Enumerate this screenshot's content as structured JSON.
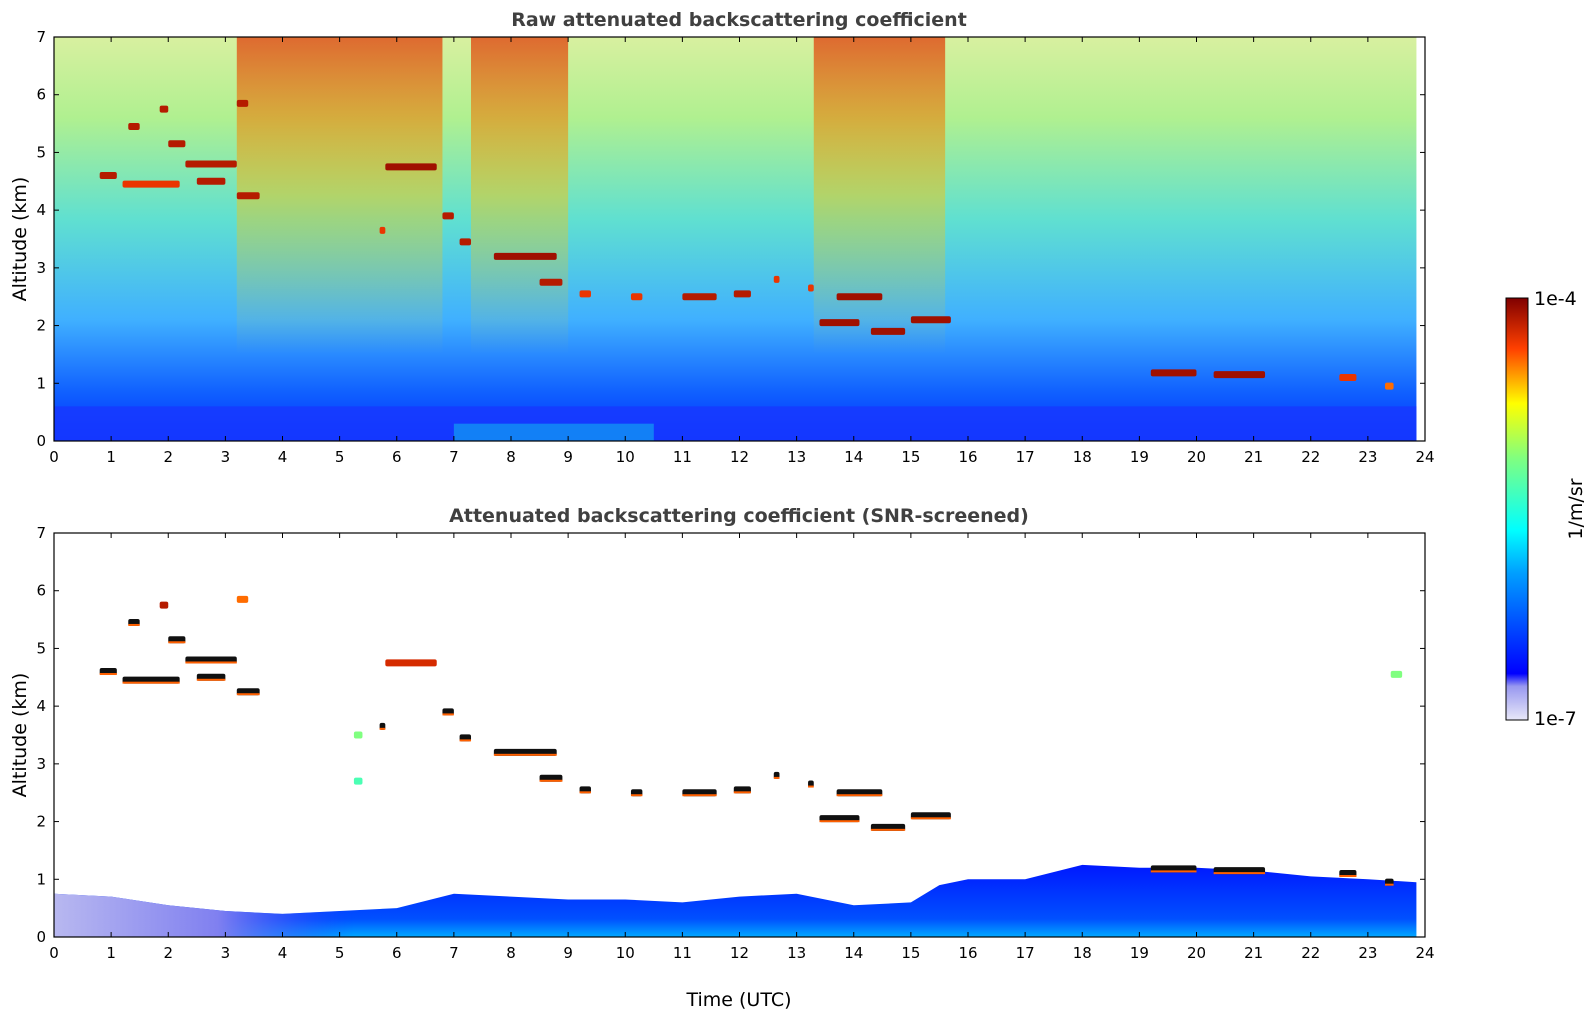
{
  "chart_data": [
    {
      "type": "heatmap",
      "title": "Raw attenuated backscattering coefficient",
      "xlabel": "",
      "ylabel": "Altitude (km)",
      "xlim": [
        0,
        24
      ],
      "ylim": [
        0,
        7
      ],
      "x_ticks": [
        "0",
        "1",
        "2",
        "3",
        "4",
        "5",
        "6",
        "7",
        "8",
        "9",
        "10",
        "11",
        "12",
        "13",
        "14",
        "15",
        "16",
        "17",
        "18",
        "19",
        "20",
        "21",
        "22",
        "23",
        "24"
      ],
      "y_ticks": [
        "0",
        "1",
        "2",
        "3",
        "4",
        "5",
        "6",
        "7"
      ],
      "color_scale": {
        "min_label": "1e-7",
        "max_label": "1e-4",
        "unit": "1/m/sr",
        "colormap": "jet"
      },
      "features": [
        {
          "t0": 0.8,
          "t1": 1.1,
          "alt": 4.6,
          "level": 0.95
        },
        {
          "t0": 1.3,
          "t1": 1.5,
          "alt": 5.45,
          "level": 0.95
        },
        {
          "t0": 1.85,
          "t1": 2.0,
          "alt": 5.75,
          "level": 0.95
        },
        {
          "t0": 2.0,
          "t1": 2.3,
          "alt": 5.15,
          "level": 0.95
        },
        {
          "t0": 2.3,
          "t1": 3.2,
          "alt": 4.8,
          "level": 0.95
        },
        {
          "t0": 1.2,
          "t1": 2.2,
          "alt": 4.45,
          "level": 0.9
        },
        {
          "t0": 2.5,
          "t1": 3.0,
          "alt": 4.5,
          "level": 0.95
        },
        {
          "t0": 3.2,
          "t1": 3.6,
          "alt": 4.25,
          "level": 0.95
        },
        {
          "t0": 3.2,
          "t1": 3.4,
          "alt": 5.85,
          "level": 0.95
        },
        {
          "t0": 5.8,
          "t1": 6.7,
          "alt": 4.75,
          "level": 0.97
        },
        {
          "t0": 5.7,
          "t1": 5.8,
          "alt": 3.65,
          "level": 0.9
        },
        {
          "t0": 6.8,
          "t1": 7.0,
          "alt": 3.9,
          "level": 0.95
        },
        {
          "t0": 7.1,
          "t1": 7.3,
          "alt": 3.45,
          "level": 0.95
        },
        {
          "t0": 7.7,
          "t1": 8.8,
          "alt": 3.2,
          "level": 0.97
        },
        {
          "t0": 8.5,
          "t1": 8.9,
          "alt": 2.75,
          "level": 0.95
        },
        {
          "t0": 9.2,
          "t1": 9.4,
          "alt": 2.55,
          "level": 0.9
        },
        {
          "t0": 10.1,
          "t1": 10.3,
          "alt": 2.5,
          "level": 0.9
        },
        {
          "t0": 11.0,
          "t1": 11.6,
          "alt": 2.5,
          "level": 0.95
        },
        {
          "t0": 11.9,
          "t1": 12.2,
          "alt": 2.55,
          "level": 0.95
        },
        {
          "t0": 12.6,
          "t1": 12.7,
          "alt": 2.8,
          "level": 0.9
        },
        {
          "t0": 13.2,
          "t1": 13.3,
          "alt": 2.65,
          "level": 0.9
        },
        {
          "t0": 13.4,
          "t1": 14.1,
          "alt": 2.05,
          "level": 0.97
        },
        {
          "t0": 13.7,
          "t1": 14.5,
          "alt": 2.5,
          "level": 0.97
        },
        {
          "t0": 14.3,
          "t1": 14.9,
          "alt": 1.9,
          "level": 0.97
        },
        {
          "t0": 15.0,
          "t1": 15.7,
          "alt": 2.1,
          "level": 0.97
        },
        {
          "t0": 19.2,
          "t1": 20.0,
          "alt": 1.18,
          "level": 0.97
        },
        {
          "t0": 20.3,
          "t1": 21.2,
          "alt": 1.15,
          "level": 0.97
        },
        {
          "t0": 22.5,
          "t1": 22.8,
          "alt": 1.1,
          "level": 0.9
        },
        {
          "t0": 23.3,
          "t1": 23.45,
          "alt": 0.95,
          "level": 0.85
        }
      ]
    },
    {
      "type": "heatmap",
      "title": "Attenuated backscattering coefficient (SNR-screened)",
      "xlabel": "Time (UTC)",
      "ylabel": "Altitude (km)",
      "xlim": [
        0,
        24
      ],
      "ylim": [
        0,
        7
      ],
      "x_ticks": [
        "0",
        "1",
        "2",
        "3",
        "4",
        "5",
        "6",
        "7",
        "8",
        "9",
        "10",
        "11",
        "12",
        "13",
        "14",
        "15",
        "16",
        "17",
        "18",
        "19",
        "20",
        "21",
        "22",
        "23",
        "24"
      ],
      "y_ticks": [
        "0",
        "1",
        "2",
        "3",
        "4",
        "5",
        "6",
        "7"
      ],
      "color_scale": {
        "min_label": "1e-7",
        "max_label": "1e-4",
        "unit": "1/m/sr",
        "colormap": "jet"
      },
      "boundary_layer_top_km": [
        [
          0,
          0.75
        ],
        [
          1,
          0.7
        ],
        [
          2,
          0.55
        ],
        [
          3,
          0.45
        ],
        [
          4,
          0.4
        ],
        [
          5,
          0.45
        ],
        [
          6,
          0.5
        ],
        [
          7,
          0.75
        ],
        [
          8,
          0.7
        ],
        [
          9,
          0.65
        ],
        [
          10,
          0.65
        ],
        [
          11,
          0.6
        ],
        [
          12,
          0.7
        ],
        [
          13,
          0.75
        ],
        [
          14,
          0.55
        ],
        [
          15,
          0.6
        ],
        [
          15.5,
          0.9
        ],
        [
          16,
          1.0
        ],
        [
          17,
          1.0
        ],
        [
          18,
          1.25
        ],
        [
          19,
          1.2
        ],
        [
          20,
          1.2
        ],
        [
          21,
          1.15
        ],
        [
          22,
          1.05
        ],
        [
          23,
          1.0
        ],
        [
          23.85,
          0.95
        ]
      ],
      "features": [
        {
          "t0": 0.8,
          "t1": 1.1,
          "alt": 4.6,
          "level": 1.0
        },
        {
          "t0": 1.3,
          "t1": 1.5,
          "alt": 5.45,
          "level": 1.0
        },
        {
          "t0": 1.85,
          "t1": 2.0,
          "alt": 5.75,
          "level": 0.95
        },
        {
          "t0": 2.0,
          "t1": 2.3,
          "alt": 5.15,
          "level": 1.0
        },
        {
          "t0": 2.3,
          "t1": 3.2,
          "alt": 4.8,
          "level": 1.0
        },
        {
          "t0": 1.2,
          "t1": 2.2,
          "alt": 4.45,
          "level": 1.0
        },
        {
          "t0": 2.5,
          "t1": 3.0,
          "alt": 4.5,
          "level": 1.0
        },
        {
          "t0": 3.2,
          "t1": 3.6,
          "alt": 4.25,
          "level": 1.0
        },
        {
          "t0": 3.2,
          "t1": 3.4,
          "alt": 5.85,
          "level": 0.85
        },
        {
          "t0": 5.8,
          "t1": 6.7,
          "alt": 4.75,
          "level": 0.92
        },
        {
          "t0": 5.7,
          "t1": 5.8,
          "alt": 3.65,
          "level": 1.0
        },
        {
          "t0": 6.8,
          "t1": 7.0,
          "alt": 3.9,
          "level": 1.0
        },
        {
          "t0": 7.1,
          "t1": 7.3,
          "alt": 3.45,
          "level": 1.0
        },
        {
          "t0": 7.7,
          "t1": 8.8,
          "alt": 3.2,
          "level": 1.0
        },
        {
          "t0": 8.5,
          "t1": 8.9,
          "alt": 2.75,
          "level": 1.0
        },
        {
          "t0": 9.2,
          "t1": 9.4,
          "alt": 2.55,
          "level": 1.0
        },
        {
          "t0": 10.1,
          "t1": 10.3,
          "alt": 2.5,
          "level": 1.0
        },
        {
          "t0": 11.0,
          "t1": 11.6,
          "alt": 2.5,
          "level": 1.0
        },
        {
          "t0": 11.9,
          "t1": 12.2,
          "alt": 2.55,
          "level": 1.0
        },
        {
          "t0": 12.6,
          "t1": 12.7,
          "alt": 2.8,
          "level": 1.0
        },
        {
          "t0": 13.2,
          "t1": 13.3,
          "alt": 2.65,
          "level": 1.0
        },
        {
          "t0": 13.4,
          "t1": 14.1,
          "alt": 2.05,
          "level": 1.0
        },
        {
          "t0": 13.7,
          "t1": 14.5,
          "alt": 2.5,
          "level": 1.0
        },
        {
          "t0": 14.3,
          "t1": 14.9,
          "alt": 1.9,
          "level": 1.0
        },
        {
          "t0": 15.0,
          "t1": 15.7,
          "alt": 2.1,
          "level": 1.0
        },
        {
          "t0": 19.2,
          "t1": 20.0,
          "alt": 1.18,
          "level": 1.0
        },
        {
          "t0": 20.3,
          "t1": 21.2,
          "alt": 1.15,
          "level": 1.0
        },
        {
          "t0": 22.5,
          "t1": 22.8,
          "alt": 1.1,
          "level": 1.0
        },
        {
          "t0": 23.3,
          "t1": 23.45,
          "alt": 0.95,
          "level": 1.0
        },
        {
          "t0": 5.25,
          "t1": 5.4,
          "alt": 3.5,
          "level": 0.62
        },
        {
          "t0": 5.25,
          "t1": 5.4,
          "alt": 2.7,
          "level": 0.55
        },
        {
          "t0": 23.4,
          "t1": 23.6,
          "alt": 4.55,
          "level": 0.62
        }
      ]
    }
  ],
  "colorbar": {
    "label": "1/m/sr",
    "max_label": "1e-4",
    "min_label": "1e-7",
    "colormap": "jet"
  }
}
